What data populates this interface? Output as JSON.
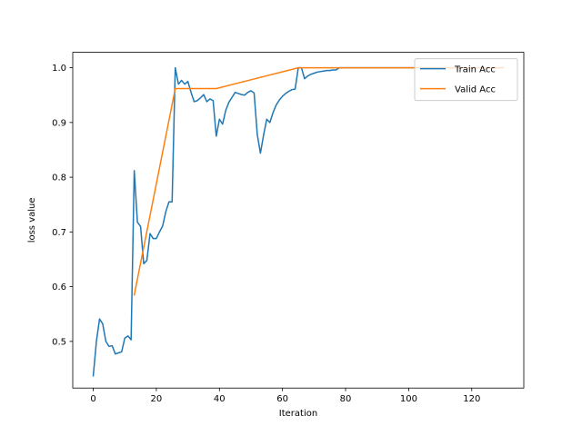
{
  "chart_data": {
    "type": "line",
    "title": "",
    "xlabel": "Iteration",
    "ylabel": "loss value",
    "xlim": [
      -6.5,
      136.5
    ],
    "ylim": [
      0.4148,
      1.0282
    ],
    "xticks": [
      0,
      20,
      40,
      60,
      80,
      100,
      120
    ],
    "yticks": [
      0.5,
      0.6,
      0.7,
      0.8,
      0.9,
      1.0
    ],
    "xtick_labels": [
      "0",
      "20",
      "40",
      "60",
      "80",
      "100",
      "120"
    ],
    "ytick_labels": [
      "0.5",
      "0.6",
      "0.7",
      "0.8",
      "0.9",
      "1.0"
    ],
    "grid": false,
    "legend": "upper right",
    "series": [
      {
        "name": "Train Acc",
        "color": "#1f77b4",
        "x": [
          0,
          1,
          2,
          3,
          4,
          5,
          6,
          7,
          8,
          9,
          10,
          11,
          12,
          13,
          14,
          15,
          16,
          17,
          18,
          19,
          20,
          21,
          22,
          23,
          24,
          25,
          26,
          27,
          28,
          29,
          30,
          31,
          32,
          33,
          34,
          35,
          36,
          37,
          38,
          39,
          40,
          41,
          42,
          43,
          44,
          45,
          46,
          47,
          48,
          49,
          50,
          51,
          52,
          53,
          54,
          55,
          56,
          57,
          58,
          59,
          60,
          61,
          62,
          63,
          64,
          65,
          66,
          67,
          68,
          69,
          70,
          71,
          72,
          73,
          74,
          75,
          76,
          77,
          78,
          79,
          80,
          90,
          100,
          110,
          120,
          130
        ],
        "y": [
          0.437,
          0.5,
          0.541,
          0.532,
          0.5,
          0.491,
          0.492,
          0.477,
          0.479,
          0.481,
          0.506,
          0.51,
          0.503,
          0.812,
          0.718,
          0.71,
          0.642,
          0.648,
          0.697,
          0.688,
          0.688,
          0.7,
          0.711,
          0.737,
          0.755,
          0.755,
          1.0,
          0.97,
          0.977,
          0.97,
          0.975,
          0.955,
          0.938,
          0.94,
          0.945,
          0.951,
          0.938,
          0.943,
          0.94,
          0.875,
          0.906,
          0.897,
          0.922,
          0.937,
          0.946,
          0.955,
          0.953,
          0.951,
          0.95,
          0.955,
          0.958,
          0.954,
          0.878,
          0.844,
          0.877,
          0.906,
          0.9,
          0.918,
          0.932,
          0.941,
          0.948,
          0.953,
          0.957,
          0.96,
          0.961,
          1.0,
          1.0,
          0.98,
          0.985,
          0.988,
          0.99,
          0.992,
          0.993,
          0.994,
          0.995,
          0.995,
          0.996,
          0.996,
          1.0,
          1.0,
          1.0,
          1.0,
          1.0,
          1.0,
          1.0,
          1.0
        ]
      },
      {
        "name": "Valid Acc",
        "color": "#ff7f0e",
        "x": [
          13,
          26,
          39,
          52,
          65,
          78,
          91,
          104,
          117,
          130
        ],
        "y": [
          0.585,
          0.962,
          0.962,
          0.981,
          1.0,
          1.0,
          1.0,
          1.0,
          1.0,
          1.0
        ]
      }
    ]
  }
}
